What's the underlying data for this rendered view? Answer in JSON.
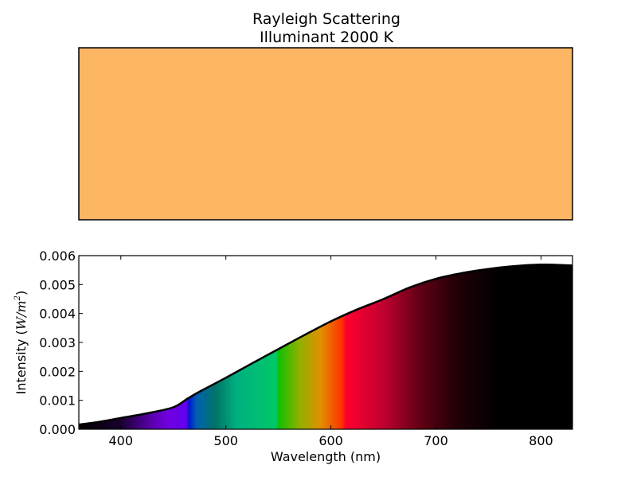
{
  "chart_data": [
    {
      "type": "color-swatch",
      "title": "Rayleigh Scattering",
      "subtitle": "Illuminant 2000 K",
      "swatch_color": "#FDB664"
    },
    {
      "type": "area",
      "xlabel": "Wavelength (nm)",
      "ylabel": "Intensity (W/m²)",
      "ylabel_prefix": "Intensity (",
      "ylabel_math": "W/m",
      "ylabel_sup": "2",
      "ylabel_suffix": ")",
      "xlim": [
        360,
        830
      ],
      "ylim": [
        0,
        0.006
      ],
      "xticks": [
        400,
        500,
        600,
        700,
        800
      ],
      "xtick_labels": [
        "400",
        "500",
        "600",
        "700",
        "800"
      ],
      "yticks": [
        0,
        0.001,
        0.002,
        0.003,
        0.004,
        0.005,
        0.006
      ],
      "ytick_labels": [
        "0.000",
        "0.001",
        "0.002",
        "0.003",
        "0.004",
        "0.005",
        "0.006"
      ],
      "x": [
        360,
        380,
        400,
        425,
        450,
        464,
        475,
        500,
        525,
        550,
        575,
        600,
        625,
        650,
        675,
        700,
        725,
        750,
        775,
        800,
        815,
        830
      ],
      "y": [
        0.00016,
        0.00026,
        0.00039,
        0.00055,
        0.00076,
        0.00107,
        0.0013,
        0.00178,
        0.00228,
        0.00277,
        0.00326,
        0.00373,
        0.00414,
        0.0045,
        0.0049,
        0.0052,
        0.0054,
        0.00554,
        0.00564,
        0.00569,
        0.00568,
        0.00566
      ],
      "spectrum_stops": [
        {
          "nm": 360,
          "color": "#000000"
        },
        {
          "nm": 400,
          "color": "#1a0030"
        },
        {
          "nm": 430,
          "color": "#5a00b0"
        },
        {
          "nm": 445,
          "color": "#7000e0"
        },
        {
          "nm": 462,
          "color": "#6400f0"
        },
        {
          "nm": 465,
          "color": "#0018d0"
        },
        {
          "nm": 472,
          "color": "#0060b0"
        },
        {
          "nm": 490,
          "color": "#007468"
        },
        {
          "nm": 510,
          "color": "#00b080"
        },
        {
          "nm": 548,
          "color": "#00c868"
        },
        {
          "nm": 550,
          "color": "#10c000"
        },
        {
          "nm": 570,
          "color": "#90b000"
        },
        {
          "nm": 590,
          "color": "#e09000"
        },
        {
          "nm": 611,
          "color": "#ff3000"
        },
        {
          "nm": 614,
          "color": "#ff0030"
        },
        {
          "nm": 650,
          "color": "#c00030"
        },
        {
          "nm": 685,
          "color": "#600014"
        },
        {
          "nm": 720,
          "color": "#200006"
        },
        {
          "nm": 760,
          "color": "#000000"
        },
        {
          "nm": 830,
          "color": "#000000"
        }
      ]
    }
  ]
}
